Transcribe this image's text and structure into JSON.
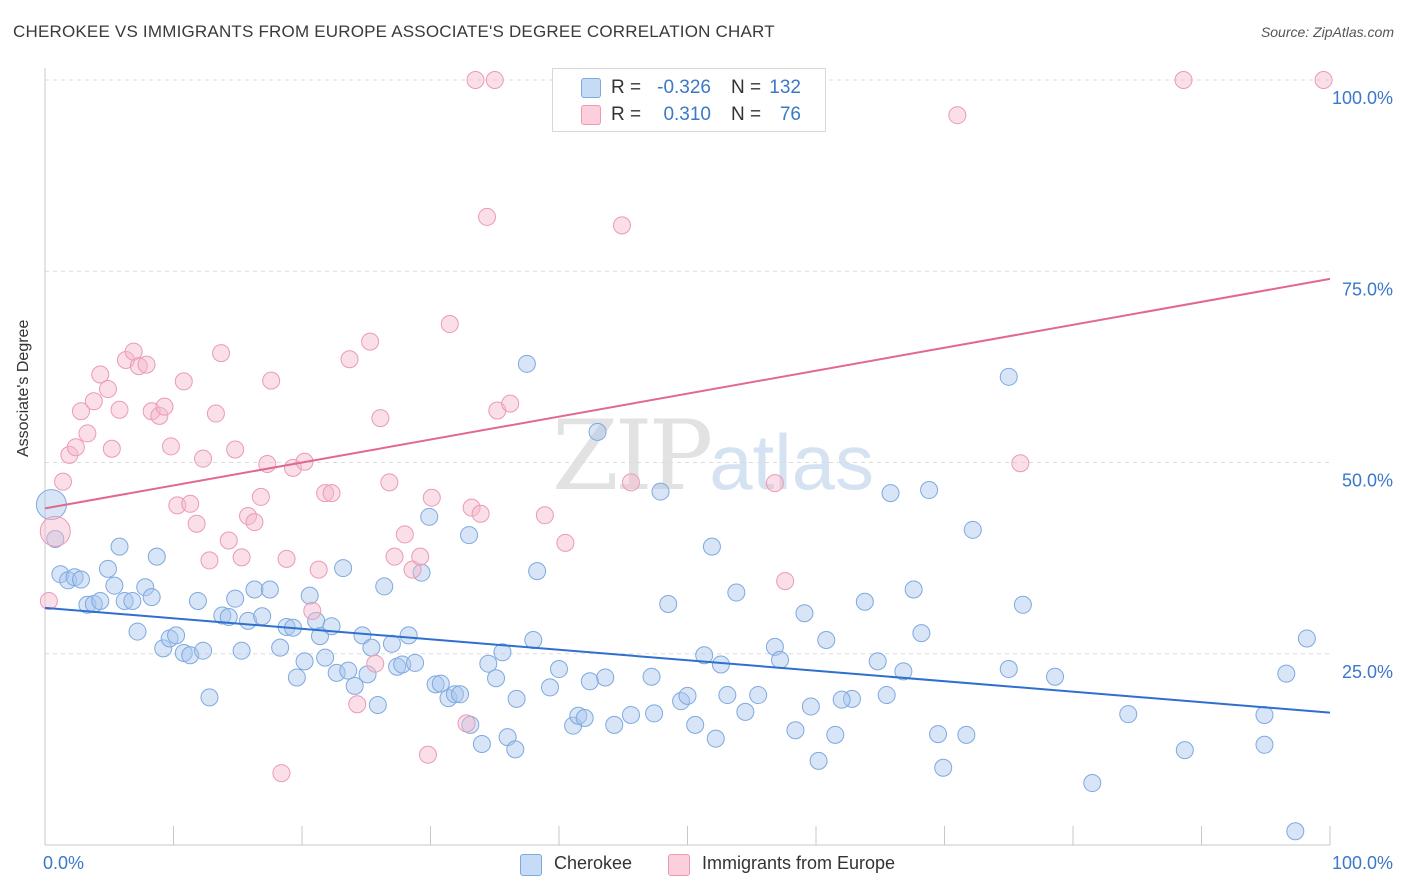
{
  "header": {
    "title": "CHEROKEE VS IMMIGRANTS FROM EUROPE ASSOCIATE'S DEGREE CORRELATION CHART",
    "source": "Source: ZipAtlas.com"
  },
  "watermark": {
    "zip": "ZIP",
    "atlas": "atlas"
  },
  "legend": {
    "rows": [
      {
        "r_label": "R =",
        "r_value": "-0.326",
        "n_label": "N =",
        "n_value": "132",
        "color": "#a8c6ee"
      },
      {
        "r_label": "R =",
        "r_value": "0.310",
        "n_label": "N =",
        "n_value": "76",
        "color": "#f5b8cb"
      }
    ]
  },
  "bottom_legend": [
    {
      "label": "Cherokee",
      "color": "#a8c6ee"
    },
    {
      "label": "Immigrants from Europe",
      "color": "#f5b8cb"
    }
  ],
  "chart_data": {
    "type": "scatter",
    "title": "CHEROKEE VS IMMIGRANTS FROM EUROPE ASSOCIATE'S DEGREE CORRELATION CHART",
    "xlabel": "",
    "ylabel": "Associate's Degree",
    "xlim": [
      0,
      100
    ],
    "ylim": [
      0,
      100
    ],
    "x_tick_labels": [
      {
        "value": 0,
        "label": "0.0%"
      },
      {
        "value": 100,
        "label": "100.0%"
      }
    ],
    "y_tick_labels": [
      {
        "value": 25,
        "label": "25.0%"
      },
      {
        "value": 50,
        "label": "50.0%"
      },
      {
        "value": 75,
        "label": "75.0%"
      },
      {
        "value": 100,
        "label": "100.0%"
      }
    ],
    "grid": "horizontal dashed",
    "legend_position": "top-center",
    "series": [
      {
        "name": "Cherokee",
        "color": "#a8c6ee",
        "line_color": "#2e6fcf",
        "trend": {
          "x": [
            0,
            100
          ],
          "y": [
            31.0,
            17.3
          ]
        },
        "points": [
          [
            0.5,
            44.5
          ],
          [
            0.8,
            40
          ],
          [
            1.2,
            35.4
          ],
          [
            1.8,
            34.6
          ],
          [
            2.3,
            35.0
          ],
          [
            2.8,
            34.7
          ],
          [
            3.3,
            31.4
          ],
          [
            3.8,
            31.5
          ],
          [
            4.3,
            31.9
          ],
          [
            4.9,
            36.1
          ],
          [
            5.4,
            33.9
          ],
          [
            5.8,
            39
          ],
          [
            6.2,
            31.9
          ],
          [
            6.8,
            31.9
          ],
          [
            7.2,
            27.9
          ],
          [
            7.8,
            33.7
          ],
          [
            8.3,
            32.4
          ],
          [
            8.7,
            37.7
          ],
          [
            9.2,
            25.7
          ],
          [
            9.7,
            27.0
          ],
          [
            10.2,
            27.4
          ],
          [
            10.8,
            25.1
          ],
          [
            11.3,
            24.8
          ],
          [
            11.9,
            31.9
          ],
          [
            12.3,
            25.4
          ],
          [
            12.8,
            19.3
          ],
          [
            13.8,
            30.0
          ],
          [
            14.3,
            29.8
          ],
          [
            14.8,
            32.2
          ],
          [
            15.3,
            25.4
          ],
          [
            15.8,
            29.3
          ],
          [
            16.3,
            33.4
          ],
          [
            16.9,
            29.9
          ],
          [
            17.5,
            33.4
          ],
          [
            18.3,
            25.8
          ],
          [
            18.8,
            28.5
          ],
          [
            19.3,
            28.4
          ],
          [
            19.6,
            21.9
          ],
          [
            20.2,
            24.0
          ],
          [
            20.6,
            32.6
          ],
          [
            21.1,
            29.3
          ],
          [
            21.4,
            27.3
          ],
          [
            21.8,
            24.5
          ],
          [
            22.3,
            28.6
          ],
          [
            22.7,
            22.5
          ],
          [
            23.2,
            36.2
          ],
          [
            23.6,
            22.8
          ],
          [
            24.1,
            20.8
          ],
          [
            24.7,
            27.4
          ],
          [
            25.1,
            22.3
          ],
          [
            25.4,
            25.8
          ],
          [
            25.9,
            18.3
          ],
          [
            26.4,
            33.8
          ],
          [
            27.0,
            26.3
          ],
          [
            27.4,
            23.3
          ],
          [
            27.8,
            23.6
          ],
          [
            28.3,
            27.4
          ],
          [
            28.8,
            23.8
          ],
          [
            29.3,
            35.6
          ],
          [
            29.9,
            42.9
          ],
          [
            30.4,
            21.0
          ],
          [
            30.8,
            21.1
          ],
          [
            31.4,
            19.2
          ],
          [
            31.9,
            19.7
          ],
          [
            32.3,
            19.7
          ],
          [
            33.0,
            40.5
          ],
          [
            33.1,
            15.7
          ],
          [
            34.0,
            13.2
          ],
          [
            34.5,
            23.7
          ],
          [
            35.1,
            21.8
          ],
          [
            35.6,
            25.2
          ],
          [
            36.0,
            14.1
          ],
          [
            36.6,
            12.5
          ],
          [
            37.5,
            62.9
          ],
          [
            38.0,
            26.8
          ],
          [
            38.3,
            35.8
          ],
          [
            39.3,
            20.6
          ],
          [
            40.0,
            23.0
          ],
          [
            41.1,
            15.6
          ],
          [
            41.5,
            16.9
          ],
          [
            42.0,
            16.6
          ],
          [
            42.4,
            21.4
          ],
          [
            43.0,
            54.0
          ],
          [
            43.6,
            21.9
          ],
          [
            44.3,
            15.7
          ],
          [
            45.6,
            17.0
          ],
          [
            47.2,
            22.0
          ],
          [
            47.4,
            17.2
          ],
          [
            47.9,
            46.2
          ],
          [
            49.5,
            18.8
          ],
          [
            50.0,
            19.5
          ],
          [
            50.6,
            15.7
          ],
          [
            51.3,
            24.8
          ],
          [
            51.9,
            39.0
          ],
          [
            52.2,
            13.9
          ],
          [
            52.6,
            23.6
          ],
          [
            53.1,
            19.6
          ],
          [
            53.8,
            33.0
          ],
          [
            54.5,
            17.4
          ],
          [
            55.5,
            19.6
          ],
          [
            56.8,
            25.9
          ],
          [
            57.2,
            24.2
          ],
          [
            58.4,
            15.0
          ],
          [
            59.1,
            30.3
          ],
          [
            59.6,
            18.1
          ],
          [
            60.2,
            11.0
          ],
          [
            60.8,
            26.8
          ],
          [
            61.5,
            14.4
          ],
          [
            62.8,
            19.1
          ],
          [
            63.8,
            31.8
          ],
          [
            64.8,
            24.0
          ],
          [
            65.5,
            19.6
          ],
          [
            65.8,
            46.0
          ],
          [
            66.8,
            22.7
          ],
          [
            67.6,
            33.4
          ],
          [
            68.2,
            27.7
          ],
          [
            68.8,
            46.4
          ],
          [
            69.5,
            14.5
          ],
          [
            69.9,
            10.1
          ],
          [
            71.7,
            14.4
          ],
          [
            72.2,
            41.2
          ],
          [
            75.0,
            61.2
          ],
          [
            75.0,
            23.0
          ],
          [
            76.1,
            31.4
          ],
          [
            78.6,
            22.0
          ],
          [
            81.5,
            8.1
          ],
          [
            84.3,
            17.1
          ],
          [
            88.7,
            12.4
          ],
          [
            94.9,
            17.0
          ],
          [
            94.9,
            13.1
          ],
          [
            97.3,
            1.8
          ],
          [
            98.2,
            27.0
          ],
          [
            96.6,
            22.4
          ],
          [
            62.0,
            19.0
          ],
          [
            48.5,
            31.5
          ],
          [
            36.7,
            19.1
          ]
        ]
      },
      {
        "name": "Immigrants from Europe",
        "color": "#f5b8cb",
        "line_color": "#e2688f",
        "trend": {
          "x": [
            0,
            100
          ],
          "y": [
            44.0,
            74.0
          ]
        },
        "points": [
          [
            0.3,
            31.9
          ],
          [
            0.8,
            41.0
          ],
          [
            1.4,
            47.5
          ],
          [
            1.9,
            51.0
          ],
          [
            2.4,
            52.0
          ],
          [
            2.8,
            56.7
          ],
          [
            3.3,
            53.8
          ],
          [
            3.8,
            58.0
          ],
          [
            4.3,
            61.5
          ],
          [
            4.9,
            59.6
          ],
          [
            5.2,
            51.8
          ],
          [
            5.8,
            56.9
          ],
          [
            6.3,
            63.4
          ],
          [
            6.9,
            64.5
          ],
          [
            7.3,
            62.6
          ],
          [
            7.9,
            62.8
          ],
          [
            8.3,
            56.7
          ],
          [
            8.9,
            56.1
          ],
          [
            9.3,
            57.3
          ],
          [
            9.8,
            52.1
          ],
          [
            10.3,
            44.4
          ],
          [
            10.8,
            60.6
          ],
          [
            11.3,
            44.6
          ],
          [
            11.8,
            42.0
          ],
          [
            12.3,
            50.5
          ],
          [
            12.8,
            37.2
          ],
          [
            13.3,
            56.4
          ],
          [
            13.7,
            64.3
          ],
          [
            14.3,
            39.8
          ],
          [
            14.8,
            51.7
          ],
          [
            15.3,
            37.6
          ],
          [
            15.8,
            43.0
          ],
          [
            16.3,
            42.2
          ],
          [
            16.8,
            45.5
          ],
          [
            17.3,
            49.8
          ],
          [
            17.6,
            60.7
          ],
          [
            18.8,
            37.4
          ],
          [
            19.3,
            49.3
          ],
          [
            20.2,
            50.1
          ],
          [
            20.8,
            30.6
          ],
          [
            21.3,
            36.0
          ],
          [
            21.8,
            46.0
          ],
          [
            22.3,
            46.0
          ],
          [
            23.7,
            63.5
          ],
          [
            24.3,
            18.4
          ],
          [
            25.3,
            65.8
          ],
          [
            26.1,
            55.8
          ],
          [
            26.8,
            47.4
          ],
          [
            27.2,
            37.7
          ],
          [
            28.0,
            40.6
          ],
          [
            28.6,
            36.0
          ],
          [
            29.2,
            37.7
          ],
          [
            30.1,
            45.4
          ],
          [
            31.5,
            68.1
          ],
          [
            32.8,
            15.9
          ],
          [
            33.2,
            44.1
          ],
          [
            33.9,
            43.3
          ],
          [
            34.4,
            82.1
          ],
          [
            35.2,
            56.8
          ],
          [
            36.2,
            57.7
          ],
          [
            38.9,
            43.1
          ],
          [
            40.5,
            39.5
          ],
          [
            42.7,
            100.0
          ],
          [
            44.9,
            81.0
          ],
          [
            45.6,
            47.4
          ],
          [
            56.8,
            47.3
          ],
          [
            57.6,
            34.5
          ],
          [
            71.0,
            95.4
          ],
          [
            75.9,
            49.9
          ],
          [
            88.6,
            100.0
          ],
          [
            99.5,
            100.0
          ],
          [
            18.4,
            9.4
          ],
          [
            25.7,
            23.7
          ],
          [
            29.8,
            11.8
          ],
          [
            35.0,
            100.0
          ],
          [
            33.5,
            100.0
          ]
        ]
      }
    ]
  }
}
